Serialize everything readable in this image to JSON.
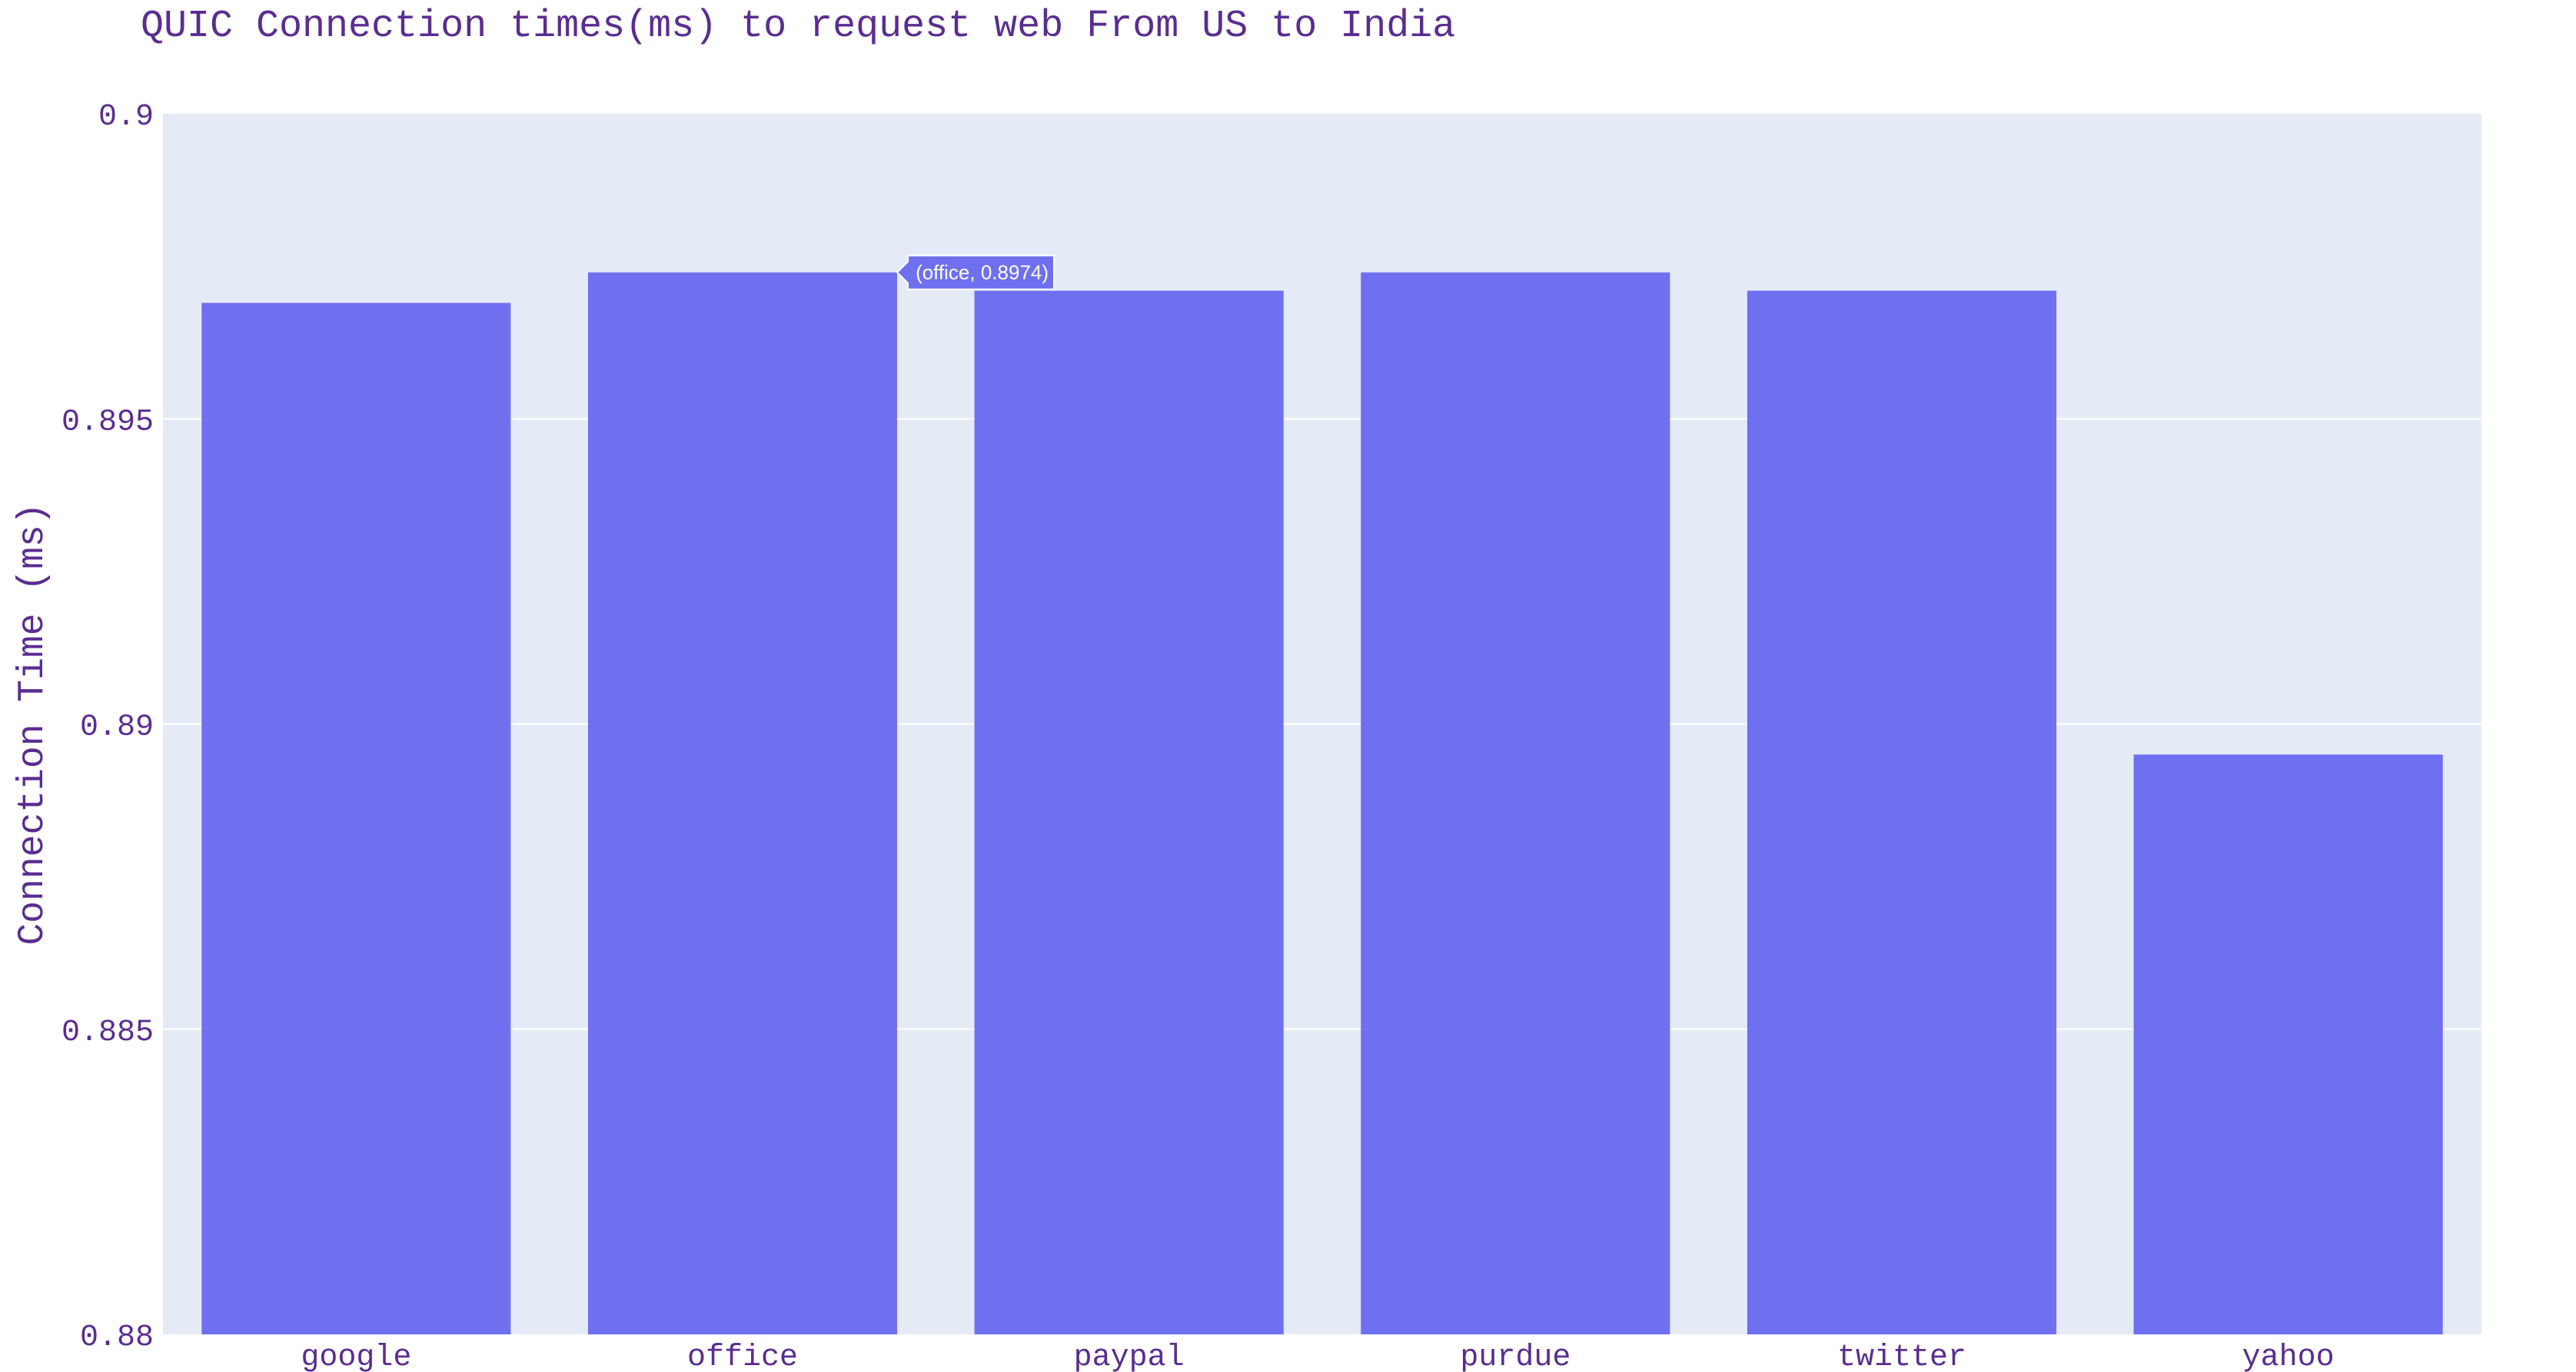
{
  "chart_data": {
    "type": "bar",
    "title": "QUIC Connection times(ms) to request web From US to India",
    "xlabel": "",
    "ylabel": "Connection Time (ms)",
    "categories": [
      "google",
      "office",
      "paypal",
      "purdue",
      "twitter",
      "yahoo"
    ],
    "values": [
      0.8969,
      0.8974,
      0.8971,
      0.8974,
      0.8971,
      0.8895
    ],
    "ylim": [
      0.88,
      0.9
    ],
    "yticks": [
      0.88,
      0.885,
      0.89,
      0.895,
      0.9
    ],
    "ytick_labels": [
      "0.88",
      "0.885",
      "0.89",
      "0.895",
      "0.9"
    ],
    "grid": true,
    "legend": "none",
    "hover_label": {
      "category": "office",
      "text": "(office, 0.8974)"
    }
  },
  "colors": {
    "bar": "#6e70f0",
    "plot_bg": "#e5ebf6",
    "grid": "#ffffff",
    "text": "#5a2d91",
    "hover_bg": "#6e70f0",
    "hover_text": "#ffffff"
  }
}
